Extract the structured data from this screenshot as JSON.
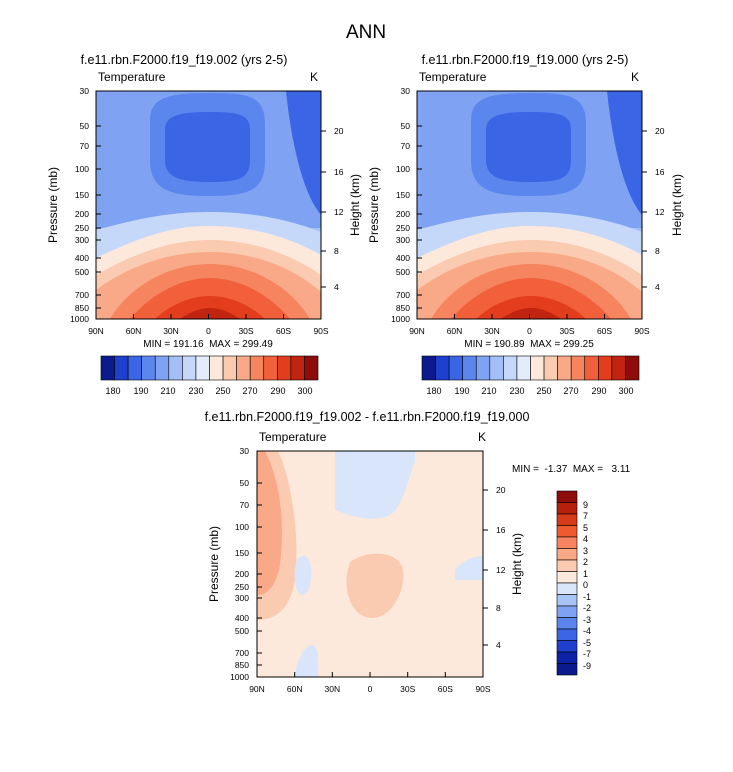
{
  "figure": {
    "title": "ANN"
  },
  "chart_data": [
    {
      "type": "heatmap",
      "title": "f.e11.rbn.F2000.f19_f19.002 (yrs 2-5)",
      "left_label": "Temperature",
      "right_label": "K",
      "xlabel": "",
      "ylabel": "Pressure (mb)",
      "y2label": "Height (km)",
      "x_ticks": [
        "90N",
        "60N",
        "30N",
        "0",
        "30S",
        "60S",
        "90S"
      ],
      "y_ticks": [
        "30",
        "50",
        "70",
        "100",
        "150",
        "200",
        "250",
        "300",
        "400",
        "500",
        "700",
        "850",
        "1000"
      ],
      "y2_ticks": [
        "20",
        "16",
        "12",
        "8",
        "4"
      ],
      "stats": "MIN = 191.16  MAX = 299.49",
      "min": 191.16,
      "max": 299.49,
      "colorbar_labels": [
        "180",
        "190",
        "210",
        "230",
        "250",
        "270",
        "290",
        "300"
      ],
      "colorbar_colors": [
        "#0b1a8c",
        "#1f3fcf",
        "#3a66e6",
        "#5b86ee",
        "#7fa3f2",
        "#a3bff6",
        "#c6d8f9",
        "#e3ecfb",
        "#fde9dc",
        "#fbcbb1",
        "#f9a987",
        "#f6855f",
        "#f1603a",
        "#e23d1c",
        "#c12410",
        "#8e0c0a"
      ]
    },
    {
      "type": "heatmap",
      "title": "f.e11.rbn.F2000.f19_f19.000 (yrs 2-5)",
      "left_label": "Temperature",
      "right_label": "K",
      "xlabel": "",
      "ylabel": "Pressure (mb)",
      "y2label": "Height (km)",
      "x_ticks": [
        "90N",
        "60N",
        "30N",
        "0",
        "30S",
        "60S",
        "90S"
      ],
      "y_ticks": [
        "30",
        "50",
        "70",
        "100",
        "150",
        "200",
        "250",
        "300",
        "400",
        "500",
        "700",
        "850",
        "1000"
      ],
      "y2_ticks": [
        "20",
        "16",
        "12",
        "8",
        "4"
      ],
      "stats": "MIN = 190.89  MAX = 299.25",
      "min": 190.89,
      "max": 299.25,
      "colorbar_labels": [
        "180",
        "190",
        "210",
        "230",
        "250",
        "270",
        "290",
        "300"
      ],
      "colorbar_colors": [
        "#0b1a8c",
        "#1f3fcf",
        "#3a66e6",
        "#5b86ee",
        "#7fa3f2",
        "#a3bff6",
        "#c6d8f9",
        "#e3ecfb",
        "#fde9dc",
        "#fbcbb1",
        "#f9a987",
        "#f6855f",
        "#f1603a",
        "#e23d1c",
        "#c12410",
        "#8e0c0a"
      ]
    },
    {
      "type": "heatmap",
      "title": "f.e11.rbn.F2000.f19_f19.002 - f.e11.rbn.F2000.f19_f19.000",
      "left_label": "Temperature",
      "right_label": "K",
      "xlabel": "",
      "ylabel": "Pressure (mb)",
      "y2label": "Height (km)",
      "x_ticks": [
        "90N",
        "60N",
        "30N",
        "0",
        "30S",
        "60S",
        "90S"
      ],
      "y_ticks": [
        "30",
        "50",
        "70",
        "100",
        "150",
        "200",
        "250",
        "300",
        "400",
        "500",
        "700",
        "850",
        "1000"
      ],
      "y2_ticks": [
        "20",
        "16",
        "12",
        "8",
        "4"
      ],
      "stats": "MIN =  -1.37  MAX =   3.11",
      "min": -1.37,
      "max": 3.11,
      "colorbar_labels": [
        "9",
        "7",
        "5",
        "4",
        "3",
        "2",
        "1",
        "0",
        "-1",
        "-2",
        "-3",
        "-4",
        "-5",
        "-7",
        "-9"
      ],
      "colorbar_colors": [
        "#8e0c0a",
        "#b8200e",
        "#d63a18",
        "#ef5a30",
        "#f6855f",
        "#f9a987",
        "#fbcbb1",
        "#fde9dc",
        "#d8e5fb",
        "#a8c3f6",
        "#7fa3f2",
        "#5b86ee",
        "#3a66e6",
        "#1f3fcf",
        "#0d23a6",
        "#0b1a8c"
      ]
    }
  ]
}
